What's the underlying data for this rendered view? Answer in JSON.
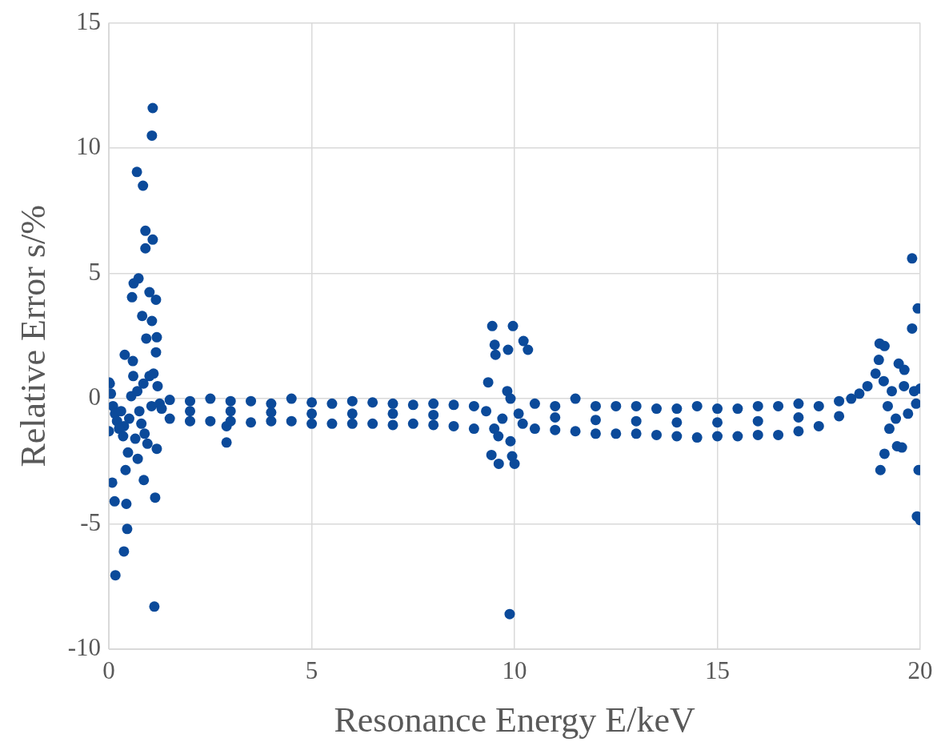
{
  "chart_data": {
    "type": "scatter",
    "xlabel": "Resonance Energy E/keV",
    "ylabel": "Relative Error s/%",
    "color": "#0b4a9a",
    "marker": "circle",
    "grid": true,
    "xlim": [
      0,
      20
    ],
    "ylim": [
      -10,
      15
    ],
    "xticks": [
      0,
      5,
      10,
      15,
      20
    ],
    "yticks": [
      -10,
      -5,
      0,
      5,
      10,
      15
    ],
    "x": [
      1.08,
      1.06,
      0.69,
      0.84,
      0.9,
      0.9,
      1.08,
      0.73,
      0.61,
      0.57,
      1.0,
      1.16,
      0.82,
      1.06,
      0.92,
      1.18,
      0.39,
      1.16,
      0.59,
      0.37,
      0.08,
      0.14,
      0.16,
      0.37,
      0.41,
      0.47,
      0.43,
      0.45,
      0.71,
      0.86,
      0.88,
      1.18,
      1.14,
      1.12,
      0,
      0,
      2.9,
      2.9,
      0.02,
      0.05,
      0.1,
      0.15,
      0.2,
      0.25,
      0.3,
      0.35,
      0.5,
      0.55,
      0.6,
      0.65,
      0.7,
      0.75,
      0.8,
      0.85,
      0.95,
      1.0,
      1.05,
      1.1,
      1.2,
      1.25,
      1.3,
      1.5,
      2,
      2.5,
      3,
      3.5,
      4,
      4.5,
      5,
      5.5,
      6,
      6.5,
      7,
      7.5,
      8,
      8.5,
      9,
      10.5,
      11,
      11.5,
      12,
      12.5,
      13,
      13.5,
      14,
      14.5,
      15,
      15.5,
      16,
      16.5,
      17,
      17.5,
      18,
      1.5,
      2,
      2.5,
      3,
      3.5,
      4,
      4.5,
      5,
      5.5,
      6,
      6.5,
      7,
      7.5,
      8,
      8.5,
      9,
      10.5,
      11,
      11.5,
      12,
      12.5,
      13,
      13.5,
      14,
      14.5,
      15,
      15.5,
      16,
      16.5,
      17,
      17.5,
      18,
      2,
      3,
      4,
      5,
      6,
      7,
      8,
      11,
      12,
      13,
      14,
      15,
      16,
      17,
      9.45,
      9.51,
      9.53,
      9.96,
      9.84,
      10.22,
      10.33,
      9.35,
      9.43,
      9.61,
      9.88,
      9.94,
      10.0,
      9.82,
      9.9,
      9.3,
      9.5,
      9.7,
      9.9,
      10.1,
      10.2,
      9.6,
      19.8,
      19.94,
      19.8,
      19.0,
      19.12,
      19.02,
      19.12,
      19.43,
      19.55,
      19.96,
      19.92,
      20.0,
      19.47,
      19.61,
      19.24,
      18.98,
      18.3,
      18.5,
      18.7,
      18.9,
      19.1,
      19.2,
      19.3,
      19.4,
      19.6,
      19.7,
      19.85,
      19.9,
      20.0
    ],
    "values": [
      11.6,
      10.5,
      9.05,
      8.5,
      6.7,
      6.0,
      6.35,
      4.8,
      4.6,
      4.05,
      4.25,
      3.95,
      3.3,
      3.1,
      2.4,
      2.45,
      1.75,
      1.85,
      1.5,
      -1.1,
      -3.35,
      -4.1,
      -7.05,
      -6.1,
      -2.85,
      -2.15,
      -4.2,
      -5.2,
      -2.4,
      -3.25,
      -1.4,
      -2.0,
      -3.95,
      -8.3,
      -1.3,
      0.65,
      -1.1,
      -1.75,
      0.6,
      0.2,
      -0.3,
      -0.6,
      -0.9,
      -1.2,
      -0.5,
      -1.5,
      -0.8,
      0.1,
      0.9,
      -1.6,
      0.3,
      -0.5,
      -1.0,
      0.6,
      -1.8,
      0.9,
      -0.3,
      1.0,
      0.5,
      -0.2,
      -0.4,
      -0.05,
      -0.1,
      0,
      -0.1,
      -0.1,
      -0.2,
      0,
      -0.15,
      -0.2,
      -0.1,
      -0.15,
      -0.2,
      -0.25,
      -0.2,
      -0.25,
      -0.3,
      -0.2,
      -0.3,
      0,
      -0.3,
      -0.3,
      -0.3,
      -0.4,
      -0.4,
      -0.3,
      -0.4,
      -0.4,
      -0.3,
      -0.3,
      -0.2,
      -0.3,
      -0.1,
      -0.8,
      -0.9,
      -0.9,
      -0.9,
      -0.95,
      -0.9,
      -0.9,
      -1.0,
      -1.0,
      -1.0,
      -1.0,
      -1.05,
      -1.0,
      -1.05,
      -1.1,
      -1.2,
      -1.2,
      -1.25,
      -1.3,
      -1.4,
      -1.4,
      -1.4,
      -1.45,
      -1.5,
      -1.55,
      -1.5,
      -1.5,
      -1.45,
      -1.45,
      -1.3,
      -1.1,
      -0.7,
      -0.5,
      -0.5,
      -0.55,
      -0.6,
      -0.6,
      -0.6,
      -0.65,
      -0.75,
      -0.85,
      -0.9,
      -0.95,
      -0.95,
      -0.9,
      -0.75,
      2.9,
      2.15,
      1.75,
      2.9,
      1.95,
      2.3,
      1.95,
      0.65,
      -2.25,
      -2.6,
      -8.6,
      -2.3,
      -2.6,
      0.3,
      -1.7,
      -0.5,
      -1.2,
      -0.8,
      0.0,
      -0.6,
      -1.0,
      -1.5,
      5.6,
      3.6,
      2.8,
      2.2,
      2.1,
      -2.85,
      -2.2,
      -1.9,
      -1.95,
      -2.85,
      -4.7,
      -4.85,
      1.4,
      1.15,
      -1.2,
      1.55,
      0.0,
      0.2,
      0.5,
      1.0,
      0.7,
      -0.3,
      0.3,
      -0.8,
      0.5,
      -0.6,
      0.3,
      -0.2,
      0.4
    ]
  }
}
